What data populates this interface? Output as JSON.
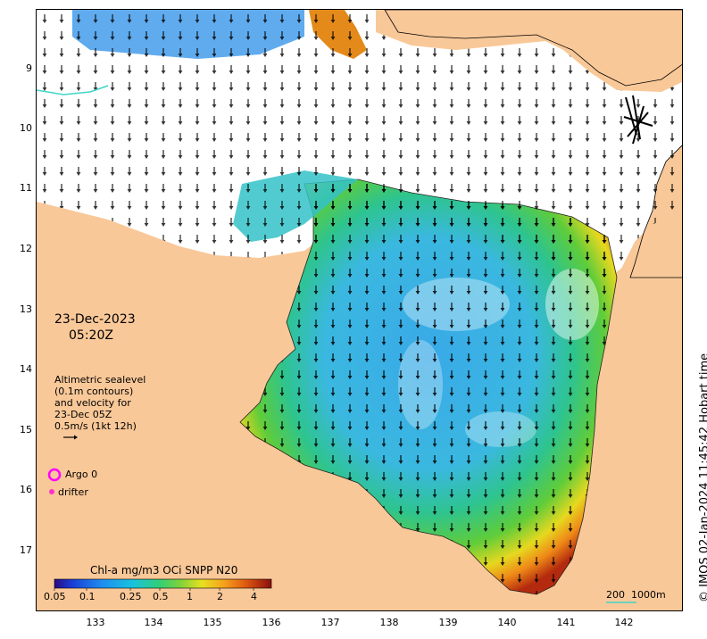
{
  "map": {
    "date_line": "23-Dec-2023",
    "time_line": "05:20Z",
    "altimetry_lines": [
      "Altimetric sealevel",
      "(0.1m contours)",
      "and velocity for",
      "23-Dec 05Z",
      "0.5m/s (1kt 12h)"
    ],
    "legend_argo": "Argo 0",
    "legend_drifter": "drifter",
    "colorbar_title": "Chl-a mg/m3 OCi SNPP N20",
    "colorbar_ticks": [
      "0.05",
      "0.1",
      "0.25",
      "0.5",
      "1",
      "2",
      "4"
    ],
    "scale_bar_label": "200",
    "depth_label": "1000m",
    "credit": "© IMOS 02-Jan-2024 11:45:42 Hobart time",
    "y_ticks": [
      "9",
      "10",
      "11",
      "12",
      "13",
      "14",
      "15",
      "16",
      "17"
    ],
    "x_ticks": [
      "133",
      "134",
      "135",
      "136",
      "137",
      "138",
      "139",
      "140",
      "141",
      "142"
    ],
    "colors": {
      "land": "#f9c898",
      "argo": "#ff00ff",
      "drifter": "#ff33cc",
      "contour_1000m": "#3fd6c9"
    }
  }
}
